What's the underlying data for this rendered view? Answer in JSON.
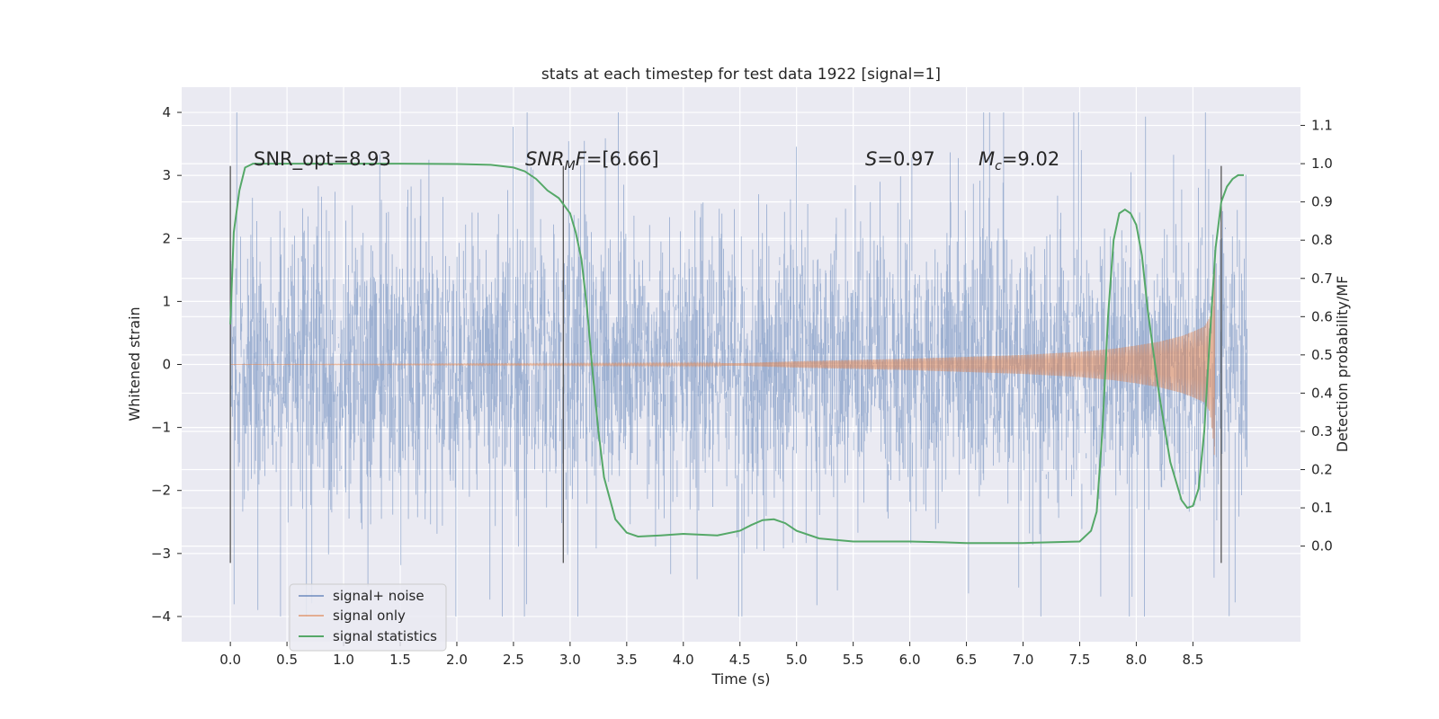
{
  "chart_data": {
    "type": "line",
    "title": "stats at each timestep for test data 1922 [signal=1]",
    "xlabel": "Time (s)",
    "ylabel": "Whitened strain",
    "ylabel_right": "Detection probability/MF",
    "xlim": [
      -0.43,
      9.45
    ],
    "ylim": [
      -4.4,
      4.4
    ],
    "ylim_right": [
      -0.25,
      1.2
    ],
    "x_ticks": [
      0.0,
      0.5,
      1.0,
      1.5,
      2.0,
      2.5,
      3.0,
      3.5,
      4.0,
      4.5,
      5.0,
      5.5,
      6.0,
      6.5,
      7.0,
      7.5,
      8.0,
      8.5
    ],
    "x_tick_labels": [
      "0.0",
      "0.5",
      "1.0",
      "1.5",
      "2.0",
      "2.5",
      "3.0",
      "3.5",
      "4.0",
      "4.5",
      "5.0",
      "5.5",
      "6.0",
      "6.5",
      "7.0",
      "7.5",
      "8.0",
      "8.5"
    ],
    "y_ticks": [
      4,
      3,
      2,
      1,
      0,
      -1,
      -2,
      -3,
      -4
    ],
    "y_tick_labels": [
      "4",
      "3",
      "2",
      "1",
      "0",
      "−1",
      "−2",
      "−3",
      "−4"
    ],
    "y_right_ticks": [
      1.1,
      1.0,
      0.9,
      0.8,
      0.7,
      0.6,
      0.5,
      0.4,
      0.3,
      0.2,
      0.1,
      0.0
    ],
    "y_right_tick_labels": [
      "1.1",
      "1.0",
      "0.9",
      "0.8",
      "0.7",
      "0.6",
      "0.5",
      "0.4",
      "0.3",
      "0.2",
      "0.1",
      "0.0"
    ],
    "grid": true,
    "legend_position": "lower-left",
    "annotations": [
      {
        "name": "snr-opt",
        "text": "SNR_opt=8.93",
        "x": 0.2,
        "y": 3.2
      },
      {
        "name": "snr-mf",
        "text": "[6.66]",
        "label_main": "SNR",
        "label_sub": "M",
        "label_tail": "F=",
        "x": 2.6,
        "y": 3.2
      },
      {
        "name": "s-score",
        "text": "=0.97",
        "label_main": "S",
        "x": 5.6,
        "y": 3.2
      },
      {
        "name": "chirp-mass",
        "text": "=9.02",
        "label_main": "M",
        "label_sub": "c",
        "x": 6.6,
        "y": 3.2
      }
    ],
    "vertical_markers": [
      0.0,
      2.94,
      8.75
    ],
    "vertical_marker_range": [
      -3.15,
      3.15
    ],
    "series": [
      {
        "name": "signal+ noise",
        "color": "#4c72b0",
        "opacity": 0.5,
        "kind": "noise-trace",
        "x_range": [
          0.0,
          8.98
        ],
        "core_std": 1.0,
        "peak_range": [
          -4.0,
          4.0
        ]
      },
      {
        "name": "signal only",
        "color": "#dd8452",
        "opacity": 0.5,
        "kind": "chirp",
        "x": [
          0.0,
          4.5,
          5.0,
          5.5,
          6.0,
          6.5,
          7.0,
          7.5,
          7.8,
          8.0,
          8.2,
          8.4,
          8.5,
          8.6,
          8.65,
          8.68,
          8.7
        ],
        "amplitude": [
          0.0,
          0.02,
          0.05,
          0.07,
          0.09,
          0.12,
          0.15,
          0.2,
          0.25,
          0.3,
          0.36,
          0.45,
          0.52,
          0.6,
          0.75,
          1.2,
          1.7
        ]
      },
      {
        "name": "signal statistics",
        "color": "#55a868",
        "axis": "right",
        "x": [
          0.0,
          0.03,
          0.08,
          0.13,
          0.2,
          0.3,
          0.6,
          1.0,
          1.5,
          2.0,
          2.3,
          2.5,
          2.6,
          2.7,
          2.8,
          2.9,
          3.0,
          3.05,
          3.1,
          3.15,
          3.2,
          3.25,
          3.3,
          3.4,
          3.5,
          3.6,
          3.8,
          4.0,
          4.3,
          4.5,
          4.6,
          4.7,
          4.8,
          4.9,
          5.0,
          5.2,
          5.5,
          6.0,
          6.3,
          6.5,
          7.0,
          7.5,
          7.6,
          7.65,
          7.7,
          7.75,
          7.8,
          7.85,
          7.9,
          7.95,
          8.0,
          8.05,
          8.1,
          8.2,
          8.3,
          8.4,
          8.45,
          8.5,
          8.55,
          8.6,
          8.65,
          8.7,
          8.75,
          8.8,
          8.85,
          8.9,
          8.95
        ],
        "values": [
          0.58,
          0.82,
          0.93,
          0.99,
          1.0,
          1.0,
          1.0,
          1.0,
          1.0,
          0.999,
          0.997,
          0.99,
          0.98,
          0.96,
          0.93,
          0.91,
          0.87,
          0.82,
          0.75,
          0.62,
          0.45,
          0.3,
          0.18,
          0.07,
          0.035,
          0.025,
          0.028,
          0.032,
          0.028,
          0.04,
          0.055,
          0.068,
          0.07,
          0.06,
          0.04,
          0.02,
          0.012,
          0.012,
          0.01,
          0.008,
          0.008,
          0.012,
          0.04,
          0.09,
          0.3,
          0.6,
          0.8,
          0.87,
          0.88,
          0.87,
          0.84,
          0.76,
          0.62,
          0.4,
          0.22,
          0.12,
          0.1,
          0.105,
          0.15,
          0.3,
          0.55,
          0.78,
          0.9,
          0.94,
          0.96,
          0.97,
          0.97
        ]
      }
    ]
  }
}
